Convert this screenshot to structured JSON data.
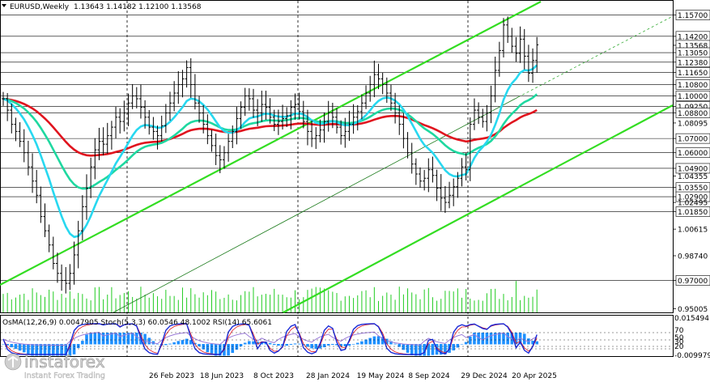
{
  "header": {
    "symbol_tf": "EURUSD,Weekly",
    "ohlc": "1.13643 1.14182 1.12100 1.13568"
  },
  "indicator_header": "OsMA(12,26,9) 0.0047905  Stoch(5,3,3) 60.0546 48.1002  RSI(14) 65.6061",
  "watermark": {
    "brand": "instaforex",
    "tagline": "Instant Forex Trading"
  },
  "colors": {
    "background": "#ffffff",
    "grid": "#000000",
    "candle": "#000000",
    "ma_red": "#e0141e",
    "ma_teal": "#1fd8a0",
    "ma_cyan": "#28d8f0",
    "channel": "#33dd22",
    "volume": "#22cc22",
    "osma": "#1e90ff",
    "stoch_main": "#1a2ad8",
    "stoch_signal": "#e0141e",
    "rsi": "#9a7ad8"
  },
  "chart_data": {
    "type": "candlestick",
    "symbol": "EURUSD",
    "timeframe": "Weekly",
    "last_ohlc": {
      "open": 1.13643,
      "high": 1.14182,
      "low": 1.121,
      "close": 1.13568
    },
    "x_tick_labels": [
      "26 Feb 2023",
      "18 Jun 2023",
      "8 Oct 2023",
      "28 Jan 2024",
      "19 May 2024",
      "8 Sep 2024",
      "29 Dec 2024",
      "20 Apr 2025"
    ],
    "price_axis_labels": [
      "1.15700",
      "1.14200",
      "1.13568",
      "1.13050",
      "1.12380",
      "1.11650",
      "1.10800",
      "1.10000",
      "1.09250",
      "1.08800",
      "1.08095",
      "1.07000",
      "1.06000",
      "1.04900",
      "1.04355",
      "1.03550",
      "1.02900",
      "1.02495",
      "1.01850",
      "1.00615",
      "0.98740",
      "0.97000",
      "0.95005"
    ],
    "level_lines": [
      1.157,
      1.142,
      1.1305,
      1.1238,
      1.1165,
      1.108,
      1.1,
      1.0925,
      1.088,
      1.07,
      1.06,
      1.049,
      1.0355,
      1.029,
      1.0185,
      0.97
    ],
    "ylim": [
      0.9475,
      1.167
    ],
    "current_price": 1.13568,
    "closes": [
      1.098,
      1.09,
      1.08,
      1.075,
      1.068,
      1.06,
      1.05,
      1.04,
      1.03,
      1.015,
      1.005,
      0.995,
      0.982,
      0.975,
      0.97,
      0.968,
      0.975,
      0.988,
      1.005,
      1.022,
      1.035,
      1.05,
      1.062,
      1.068,
      1.066,
      1.072,
      1.078,
      1.085,
      1.082,
      1.088,
      1.095,
      1.1,
      1.098,
      1.092,
      1.085,
      1.078,
      1.075,
      1.072,
      1.079,
      1.088,
      1.095,
      1.102,
      1.108,
      1.112,
      1.12,
      1.108,
      1.095,
      1.088,
      1.08,
      1.072,
      1.065,
      1.058,
      1.055,
      1.06,
      1.068,
      1.075,
      1.084,
      1.092,
      1.1,
      1.098,
      1.09,
      1.088,
      1.094,
      1.092,
      1.085,
      1.08,
      1.082,
      1.084,
      1.086,
      1.092,
      1.094,
      1.089,
      1.082,
      1.075,
      1.07,
      1.072,
      1.076,
      1.082,
      1.088,
      1.085,
      1.078,
      1.072,
      1.075,
      1.08,
      1.085,
      1.089,
      1.095,
      1.102,
      1.108,
      1.115,
      1.112,
      1.108,
      1.102,
      1.095,
      1.088,
      1.08,
      1.07,
      1.06,
      1.052,
      1.045,
      1.04,
      1.042,
      1.048,
      1.044,
      1.035,
      1.028,
      1.025,
      1.03,
      1.036,
      1.042,
      1.05,
      1.048,
      1.08,
      1.09,
      1.085,
      1.082,
      1.088,
      1.1,
      1.118,
      1.132,
      1.15,
      1.142,
      1.135,
      1.13,
      1.14,
      1.128,
      1.116,
      1.125,
      1.136
    ]
  }
}
